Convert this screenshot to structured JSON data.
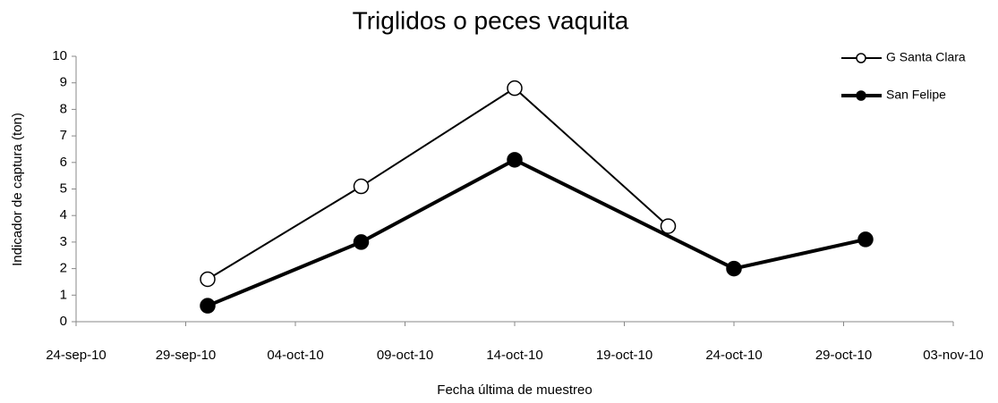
{
  "chart_data": {
    "type": "line",
    "title": "Triglidos o peces vaquita",
    "x_label": "Fecha última de muestreo",
    "y_label": "Indicador de captura (ton)",
    "xlim": [
      "2010-09-24",
      "2010-11-03"
    ],
    "xticks": [
      {
        "value": "2010-09-24",
        "label": "24-sep-10"
      },
      {
        "value": "2010-09-29",
        "label": "29-sep-10"
      },
      {
        "value": "2010-10-04",
        "label": "04-oct-10"
      },
      {
        "value": "2010-10-09",
        "label": "09-oct-10"
      },
      {
        "value": "2010-10-14",
        "label": "14-oct-10"
      },
      {
        "value": "2010-10-19",
        "label": "19-oct-10"
      },
      {
        "value": "2010-10-24",
        "label": "24-oct-10"
      },
      {
        "value": "2010-10-29",
        "label": "29-oct-10"
      },
      {
        "value": "2010-11-03",
        "label": "03-nov-10"
      }
    ],
    "ylim": [
      0,
      10
    ],
    "yticks": [
      0,
      1,
      2,
      3,
      4,
      5,
      6,
      7,
      8,
      9,
      10
    ],
    "grid": false,
    "legend": "top-right",
    "series": [
      {
        "name": "G Santa Clara",
        "color": "#000000",
        "marker": "open",
        "x": [
          "2010-09-30",
          "2010-10-07",
          "2010-10-14",
          "2010-10-21"
        ],
        "values": [
          1.6,
          5.1,
          8.8,
          3.6
        ]
      },
      {
        "name": "San Felipe",
        "color": "#000000",
        "marker": "filled",
        "x": [
          "2010-09-30",
          "2010-10-07",
          "2010-10-14",
          "2010-10-24",
          "2010-10-30"
        ],
        "values": [
          0.6,
          3.0,
          6.1,
          2.0,
          3.1
        ]
      }
    ]
  }
}
